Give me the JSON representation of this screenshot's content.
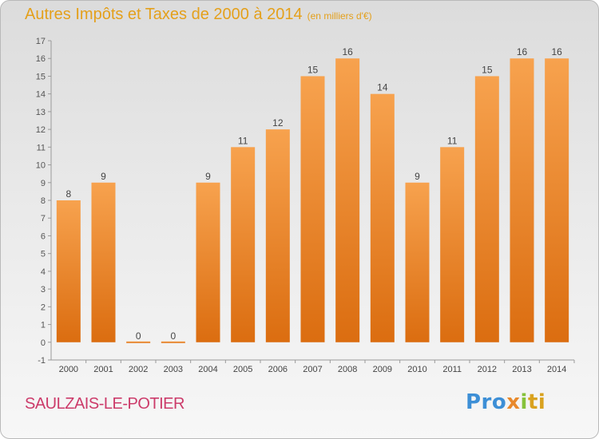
{
  "title": "Autres Impôts et Taxes de 2000 à 2014",
  "subtitle": "(en milliers d'€)",
  "commune": "SAULZAIS-LE-POTIER",
  "logo": {
    "p1": "Pro",
    "p2": "x",
    "p3": "i",
    "p4": "ti"
  },
  "colors": {
    "bar_light": "#f7a24e",
    "bar_dark": "#db6d10",
    "title": "#e4a01b",
    "commune": "#cc3b6a"
  },
  "chart_data": {
    "type": "bar",
    "categories": [
      "2000",
      "2001",
      "2002",
      "2003",
      "2004",
      "2005",
      "2006",
      "2007",
      "2008",
      "2009",
      "2010",
      "2011",
      "2012",
      "2013",
      "2014"
    ],
    "values": [
      8,
      9,
      0,
      0,
      9,
      11,
      12,
      15,
      16,
      14,
      9,
      11,
      15,
      16,
      16
    ],
    "data_labels": [
      "8",
      "9",
      "0",
      "0",
      "9",
      "11",
      "12",
      "15",
      "16",
      "14",
      "9",
      "11",
      "15",
      "16",
      "16"
    ],
    "ylim": [
      -1,
      17
    ],
    "yticks": [
      -1,
      0,
      1,
      2,
      3,
      4,
      5,
      6,
      7,
      8,
      9,
      10,
      11,
      12,
      13,
      14,
      15,
      16,
      17
    ],
    "grid": false,
    "legend": "none"
  }
}
